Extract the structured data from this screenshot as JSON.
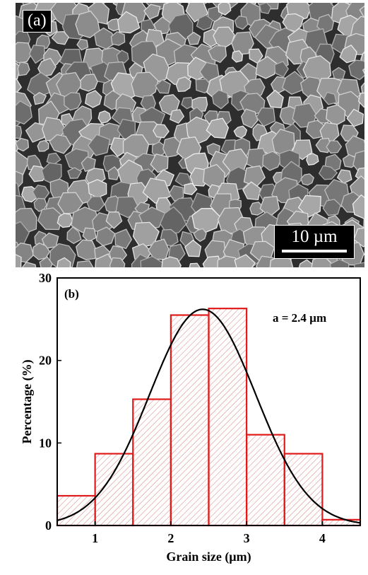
{
  "panel_a": {
    "label": "(a)",
    "scale_bar": "10 µm",
    "background_color": "#5a5a5a"
  },
  "chart_data": {
    "type": "bar",
    "panel_label": "(b)",
    "annotation": "a = 2.4 µm",
    "xlabel": "Grain size (µm)",
    "ylabel": "Percentage (%)",
    "xlim": [
      0.5,
      4.5
    ],
    "ylim": [
      0,
      30
    ],
    "xticks": [
      1,
      2,
      3,
      4
    ],
    "yticks": [
      0,
      10,
      20,
      30
    ],
    "bins": [
      {
        "from": 0.5,
        "to": 1.0,
        "value": 3.6
      },
      {
        "from": 1.0,
        "to": 1.5,
        "value": 8.7
      },
      {
        "from": 1.5,
        "to": 2.0,
        "value": 15.3
      },
      {
        "from": 2.0,
        "to": 2.5,
        "value": 25.5
      },
      {
        "from": 2.5,
        "to": 3.0,
        "value": 26.3
      },
      {
        "from": 3.0,
        "to": 3.5,
        "value": 11.0
      },
      {
        "from": 3.5,
        "to": 4.0,
        "value": 8.7
      },
      {
        "from": 4.0,
        "to": 4.5,
        "value": 0.7
      }
    ],
    "fit_curve": {
      "type": "gaussian",
      "mean": 2.42,
      "sd": 0.7,
      "peak": 26.2
    },
    "bar_color": "#e01b1b",
    "hatch_color": "#d98080",
    "curve_color": "#000000",
    "grid": false,
    "legend": false
  }
}
